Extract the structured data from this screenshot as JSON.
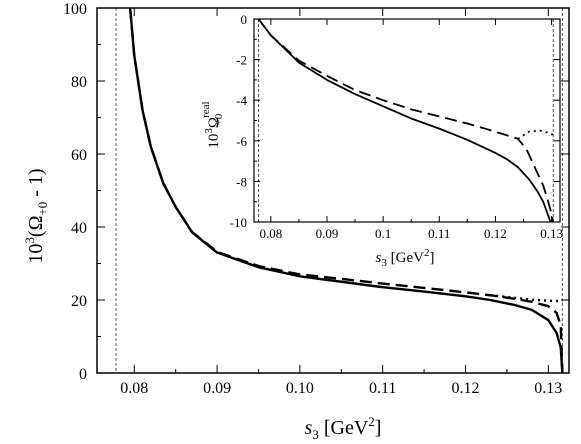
{
  "chart_data": [
    {
      "type": "line",
      "title": "",
      "xlabel": "s3 [GeV2]",
      "ylabel": "10^3(Ω+0 - 1)",
      "xlabel_parts": {
        "var": "s",
        "var_sub": "3",
        "unit_pre": "[GeV",
        "unit_sup": "2",
        "unit_post": "]"
      },
      "ylabel_parts": {
        "pre": "10",
        "sup": "3",
        "mid": "(Ω",
        "sub": "+0",
        "post": " - 1)"
      },
      "xlim": [
        0.0755,
        0.1325
      ],
      "ylim": [
        0,
        100
      ],
      "xticks": [
        0.08,
        0.09,
        0.1,
        0.11,
        0.12,
        0.13
      ],
      "xtick_labels": [
        "0.08",
        "0.09",
        "0.10",
        "0.11",
        "0.12",
        "0.13"
      ],
      "yticks": [
        0,
        20,
        40,
        60,
        80,
        100
      ],
      "ytick_labels": [
        "0",
        "20",
        "40",
        "60",
        "80",
        "100"
      ],
      "vertical_lines": [
        0.0778,
        0.1317
      ],
      "grid": false,
      "legend": "none",
      "series": [
        {
          "style": "solid",
          "x": [
            0.0795,
            0.08,
            0.081,
            0.082,
            0.0835,
            0.085,
            0.087,
            0.09,
            0.095,
            0.1,
            0.105,
            0.11,
            0.115,
            0.12,
            0.123,
            0.126,
            0.128,
            0.13,
            0.131,
            0.1315,
            0.1317
          ],
          "y": [
            100,
            87,
            72,
            62,
            52,
            45.5,
            38.5,
            33,
            29,
            26.5,
            25,
            23.5,
            22.3,
            21,
            20,
            18.6,
            17.3,
            14.5,
            11,
            7,
            0
          ]
        },
        {
          "style": "dashed",
          "x": [
            0.0795,
            0.08,
            0.081,
            0.082,
            0.0835,
            0.085,
            0.087,
            0.09,
            0.095,
            0.1,
            0.105,
            0.11,
            0.115,
            0.12,
            0.123,
            0.126,
            0.128,
            0.13,
            0.131,
            0.1315,
            0.1317
          ],
          "y": [
            100,
            87,
            72,
            62,
            52,
            45.5,
            38.6,
            33.2,
            29.3,
            27,
            25.8,
            24.5,
            23.3,
            22.1,
            21.3,
            20.3,
            19.5,
            18.3,
            16.5,
            13,
            0
          ]
        },
        {
          "style": "dotted",
          "x": [
            0.123,
            0.126,
            0.128,
            0.13,
            0.1317
          ],
          "y": [
            21.3,
            20.6,
            20.1,
            19.8,
            19.7
          ]
        }
      ]
    },
    {
      "type": "line",
      "title": "",
      "xlabel": "s3 [GeV2]",
      "ylabel": "10^3 Ω+0 real",
      "xlabel_parts": {
        "var": "s",
        "var_sub": "3",
        "unit_pre": "[GeV",
        "unit_sup": "2",
        "unit_post": "]"
      },
      "ylabel_parts": {
        "pre": "10",
        "sup": "3",
        "mid": "Ω",
        "sub": "+0",
        "sup2": "real"
      },
      "xlim": [
        0.077,
        0.1315
      ],
      "ylim": [
        -10,
        0
      ],
      "xticks": [
        0.08,
        0.09,
        0.1,
        0.11,
        0.12,
        0.13
      ],
      "xtick_labels": [
        "0.08",
        "0.09",
        "0.1",
        "0.11",
        "0.12",
        "0.13"
      ],
      "yticks": [
        0,
        -2,
        -4,
        -6,
        -8,
        -10
      ],
      "ytick_labels": [
        "0",
        "-2",
        "-4",
        "-6",
        "-8",
        "-10"
      ],
      "vertical_lines": [
        0.0778,
        0.1303
      ],
      "grid": false,
      "legend": "none",
      "series": [
        {
          "style": "solid",
          "x": [
            0.0778,
            0.08,
            0.085,
            0.09,
            0.095,
            0.1,
            0.105,
            0.11,
            0.115,
            0.12,
            0.122,
            0.124,
            0.126,
            0.1275,
            0.1285,
            0.1293,
            0.1298
          ],
          "y": [
            0,
            -0.8,
            -2.15,
            -3.0,
            -3.7,
            -4.3,
            -4.9,
            -5.4,
            -5.95,
            -6.6,
            -6.9,
            -7.3,
            -7.9,
            -8.5,
            -9.0,
            -9.6,
            -10.0
          ]
        },
        {
          "style": "dashed",
          "x": [
            0.0778,
            0.08,
            0.085,
            0.09,
            0.095,
            0.1,
            0.105,
            0.11,
            0.115,
            0.12,
            0.124,
            0.1255,
            0.1265,
            0.1275,
            0.1285,
            0.1293,
            0.13,
            0.1303
          ],
          "y": [
            0,
            -0.8,
            -2.05,
            -2.8,
            -3.5,
            -4.0,
            -4.45,
            -4.8,
            -5.15,
            -5.55,
            -5.9,
            -6.4,
            -7.0,
            -7.6,
            -8.2,
            -8.9,
            -9.6,
            -10.0
          ]
        },
        {
          "style": "dotted",
          "x": [
            0.124,
            0.126,
            0.128,
            0.13,
            0.1303
          ],
          "y": [
            -5.9,
            -5.55,
            -5.5,
            -5.65,
            -5.75
          ]
        }
      ]
    }
  ]
}
